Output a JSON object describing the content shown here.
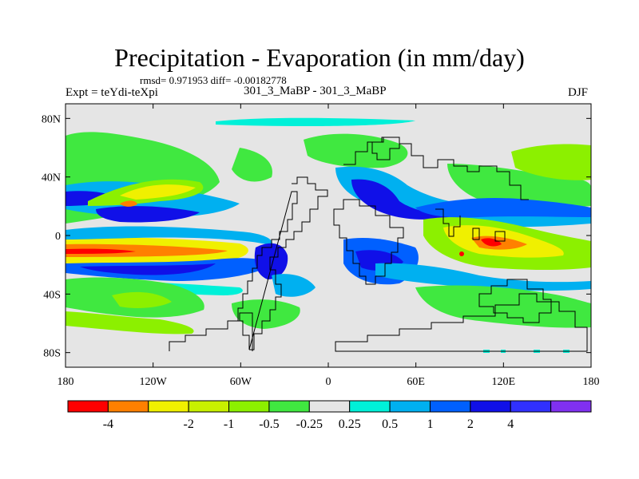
{
  "title": "Precipitation - Evaporation (in mm/day)",
  "stats": "rmsd= 0.971953  diff= -0.00182778",
  "experiment": "Expt = teYdi-teXpi",
  "center_label": "301_3_MaBP - 301_3_MaBP",
  "season": "DJF",
  "map": {
    "projection": "cylindrical equidistant",
    "lon_range": [
      -180,
      180
    ],
    "lat_range": [
      -90,
      90
    ],
    "background_color": "#e5e5e5",
    "coastline_color": "#000000",
    "lat_ticks": [
      {
        "lat": 80,
        "label": "80N"
      },
      {
        "lat": 40,
        "label": "40N"
      },
      {
        "lat": 0,
        "label": "0"
      },
      {
        "lat": -40,
        "label": "40S"
      },
      {
        "lat": -80,
        "label": "80S"
      }
    ],
    "lon_ticks": [
      {
        "lon": -180,
        "label": "180"
      },
      {
        "lon": -120,
        "label": "120W"
      },
      {
        "lon": -60,
        "label": "60W"
      },
      {
        "lon": 0,
        "label": "0"
      },
      {
        "lon": 60,
        "label": "60E"
      },
      {
        "lon": 120,
        "label": "120E"
      },
      {
        "lon": 180,
        "label": "180"
      }
    ]
  },
  "colorbar": {
    "colors": [
      "#ff0000",
      "#ff8000",
      "#f0f000",
      "#c8f000",
      "#8cf000",
      "#40e840",
      "#e5e5e5",
      "#00f0d8",
      "#00b0f0",
      "#0060ff",
      "#1010e8",
      "#3030ff",
      "#8030f0"
    ],
    "labels": [
      "-4",
      "-2",
      "-1",
      "-0.5",
      "-0.25",
      "0.25",
      "0.5",
      "1",
      "2",
      "4"
    ],
    "label_after_box": [
      1,
      3,
      4,
      5,
      6,
      7,
      8,
      9,
      10,
      11
    ]
  }
}
